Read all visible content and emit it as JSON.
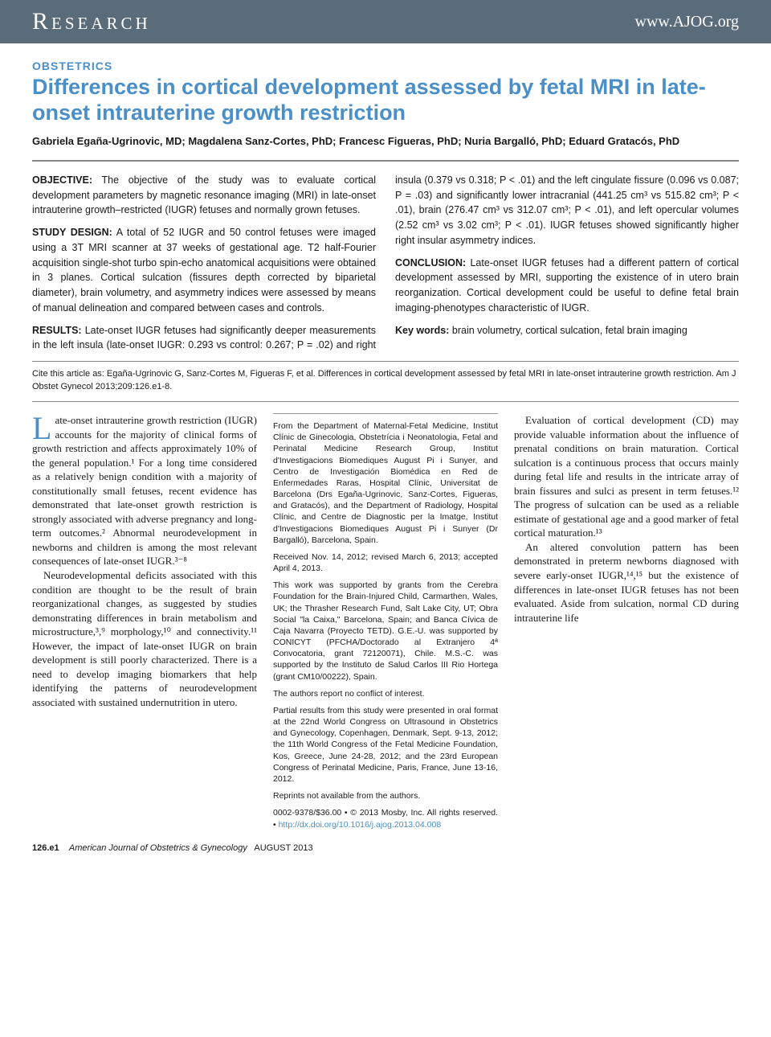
{
  "header": {
    "left": "Research",
    "right": "www.AJOG.org"
  },
  "category": "OBSTETRICS",
  "title": "Differences in cortical development assessed by fetal MRI in late-onset intrauterine growth restriction",
  "authors": "Gabriela Egaña-Ugrinovic, MD; Magdalena Sanz-Cortes, PhD; Francesc Figueras, PhD; Nuria Bargalló, PhD; Eduard Gratacós, PhD",
  "abstract": {
    "objective_label": "OBJECTIVE:",
    "objective": "The objective of the study was to evaluate cortical development parameters by magnetic resonance imaging (MRI) in late-onset intrauterine growth–restricted (IUGR) fetuses and normally grown fetuses.",
    "design_label": "STUDY DESIGN:",
    "design": "A total of 52 IUGR and 50 control fetuses were imaged using a 3T MRI scanner at 37 weeks of gestational age. T2 half-Fourier acquisition single-shot turbo spin-echo anatomical acquisitions were obtained in 3 planes. Cortical sulcation (fissures depth corrected by biparietal diameter), brain volumetry, and asymmetry indices were assessed by means of manual delineation and compared between cases and controls.",
    "results_label": "RESULTS:",
    "results": "Late-onset IUGR fetuses had significantly deeper measurements in the left insula (late-onset IUGR: 0.293 vs control: 0.267; P = .02) and right insula (0.379 vs 0.318; P < .01) and the left cingulate fissure (0.096 vs 0.087; P = .03) and significantly lower intracranial (441.25 cm³ vs 515.82 cm³; P < .01), brain (276.47 cm³ vs 312.07 cm³; P < .01), and left opercular volumes (2.52 cm³ vs 3.02 cm³; P < .01). IUGR fetuses showed significantly higher right insular asymmetry indices.",
    "conclusion_label": "CONCLUSION:",
    "conclusion": "Late-onset IUGR fetuses had a different pattern of cortical development assessed by MRI, supporting the existence of in utero brain reorganization. Cortical development could be useful to define fetal brain imaging-phenotypes characteristic of IUGR.",
    "keywords_label": "Key words:",
    "keywords": "brain volumetry, cortical sulcation, fetal brain imaging"
  },
  "citation": "Cite this article as: Egaña-Ugrinovic G, Sanz-Cortes M, Figueras F, et al. Differences in cortical development assessed by fetal MRI in late-onset intrauterine growth restriction. Am J Obstet Gynecol 2013;209:126.e1-8.",
  "body": {
    "dropcap": "L",
    "p1": "ate-onset intrauterine growth restriction (IUGR) accounts for the majority of clinical forms of growth restriction and affects approximately 10% of the general population.¹ For a long time considered as a relatively benign condition with a majority of constitutionally small fetuses, recent evidence has demonstrated that late-onset growth restriction is strongly associated with adverse pregnancy and long-term outcomes.² Abnormal neurodevelopment in newborns and children is among the most relevant consequences of late-onset IUGR.³⁻⁸",
    "p2": "Neurodevelopmental deficits associated with this condition are thought to be the result of brain reorganizational changes, as suggested by studies demonstrating differences in brain metabolism and microstructure,³,⁹ morphology,¹⁰ and connectivity.¹¹ However, the impact of late-onset IUGR on brain development is still poorly characterized. There is a need to develop imaging biomarkers that help identifying the patterns of neurodevelopment associated with sustained undernutrition in utero.",
    "p3": "Evaluation of cortical development (CD) may provide valuable information about the influence of prenatal conditions on brain maturation. Cortical sulcation is a continuous process that occurs mainly during fetal life and results in the intricate array of brain fissures and sulci as present in term fetuses.¹² The progress of sulcation can be used as a reliable estimate of gestational age and a good marker of fetal cortical maturation.¹³",
    "p4": "An altered convolution pattern has been demonstrated in preterm newborns diagnosed with severe early-onset IUGR,¹⁴,¹⁵ but the existence of differences in late-onset IUGR fetuses has not been evaluated. Aside from sulcation, normal CD during intrauterine life"
  },
  "affiliations": {
    "a1": "From the Department of Maternal-Fetal Medicine, Institut Clínic de Ginecologia, Obstetrícia i Neonatologia, Fetal and Perinatal Medicine Research Group, Institut d'Investigacions Biomediques August Pi i Sunyer, and Centro de Investigación Biomédica en Red de Enfermedades Raras, Hospital Clínic, Universitat de Barcelona (Drs Egaña-Ugrinovic, Sanz-Cortes, Figueras, and Gratacós), and the Department of Radiology, Hospital Clínic, and Centre de Diagnostic per la Imatge, Institut d'Investigacions Biomediques August Pi i Sunyer (Dr Bargalló), Barcelona, Spain.",
    "a2": "Received Nov. 14, 2012; revised March 6, 2013; accepted April 4, 2013.",
    "a3": "This work was supported by grants from the Cerebra Foundation for the Brain-Injured Child, Carmarthen, Wales, UK; the Thrasher Research Fund, Salt Lake City, UT; Obra Social \"la Caixa,\" Barcelona, Spain; and Banca Cívica de Caja Navarra (Proyecto TETD). G.E.-U. was supported by CONICYT (PFCHA/Doctorado al Extranjero 4ª Convocatoria, grant 72120071), Chile. M.S.-C. was supported by the Instituto de Salud Carlos III Rio Hortega (grant CM10/00222), Spain.",
    "a4": "The authors report no conflict of interest.",
    "a5": "Partial results from this study were presented in oral format at the 22nd World Congress on Ultrasound in Obstetrics and Gynecology, Copenhagen, Denmark, Sept. 9-13, 2012; the 11th World Congress of the Fetal Medicine Foundation, Kos, Greece, June 24-28, 2012; and the 23rd European Congress of Perinatal Medicine, Paris, France, June 13-16, 2012.",
    "a6": "Reprints not available from the authors.",
    "a7_prefix": "0002-9378/$36.00 • © 2013 Mosby, Inc. All rights reserved. • ",
    "a7_link": "http://dx.doi.org/10.1016/j.ajog.2013.04.008"
  },
  "footer": {
    "pagenum": "126.e1",
    "journal": "American Journal of Obstetrics & Gynecology",
    "month": "AUGUST 2013"
  },
  "colors": {
    "header_bg": "#5a6b7a",
    "accent_blue": "#4a8fc7",
    "text": "#1a1a1a",
    "rule_gray": "#888888"
  }
}
